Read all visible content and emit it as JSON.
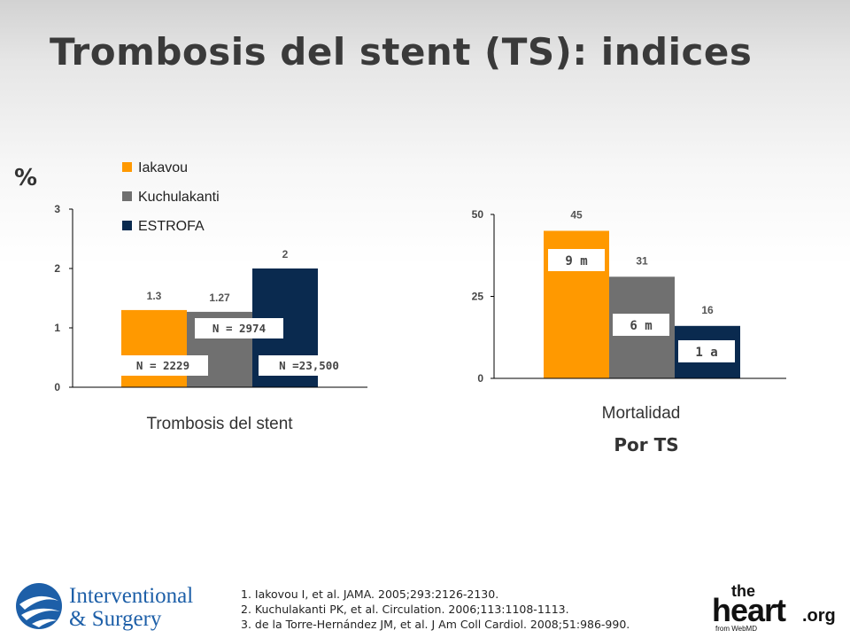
{
  "title": "Trombosis del stent (TS): indices",
  "percent_symbol": "%",
  "colors": {
    "iakavou": "#ff9900",
    "kuchulakanti": "#707070",
    "estrofa": "#0a2a4f"
  },
  "chart_data": [
    {
      "type": "bar",
      "xlabel": "Trombosis del stent",
      "ylabel": "%",
      "ylim": [
        0,
        3
      ],
      "yticks": [
        0,
        1,
        2,
        3
      ],
      "grid": false,
      "legend_position": "top-left",
      "series": [
        {
          "name": "Iakavou",
          "values": [
            1.3
          ],
          "value_label": "1.3",
          "n_label": "N = 2229",
          "color": "#ff9900"
        },
        {
          "name": "Kuchulakanti",
          "values": [
            1.27
          ],
          "value_label": "1.27",
          "n_label": "N = 2974",
          "color": "#707070"
        },
        {
          "name": "ESTROFA",
          "values": [
            2
          ],
          "value_label": "2",
          "n_label": "N =23,500",
          "color": "#0a2a4f"
        }
      ]
    },
    {
      "type": "bar",
      "xlabel": "Mortalidad",
      "subtitle": "Por TS",
      "ylim": [
        0,
        50
      ],
      "yticks": [
        0,
        25,
        50
      ],
      "grid": false,
      "series": [
        {
          "name": "",
          "values": [
            45
          ],
          "value_label": "45",
          "period_label": "9 m",
          "color": "#ff9900"
        },
        {
          "name": "",
          "values": [
            31
          ],
          "value_label": "31",
          "period_label": "6 m",
          "color": "#707070"
        },
        {
          "name": "",
          "values": [
            16
          ],
          "value_label": "16",
          "period_label": "1 a",
          "color": "#0a2a4f"
        }
      ]
    }
  ],
  "references": [
    "1. Iakovou I, et al. JAMA. 2005;293:2126-2130.",
    "2. Kuchulakanti PK, et al. Circulation. 2006;113:1108-1113.",
    "3. de la Torre-Hernández JM, et al. J Am Coll Cardiol. 2008;51:986-990."
  ],
  "logos": {
    "left_line1": "Interventional",
    "left_line2": "& Surgery",
    "right_main": "heart",
    "right_the": "the",
    "right_org": ".org",
    "right_from": "from WebMD"
  }
}
